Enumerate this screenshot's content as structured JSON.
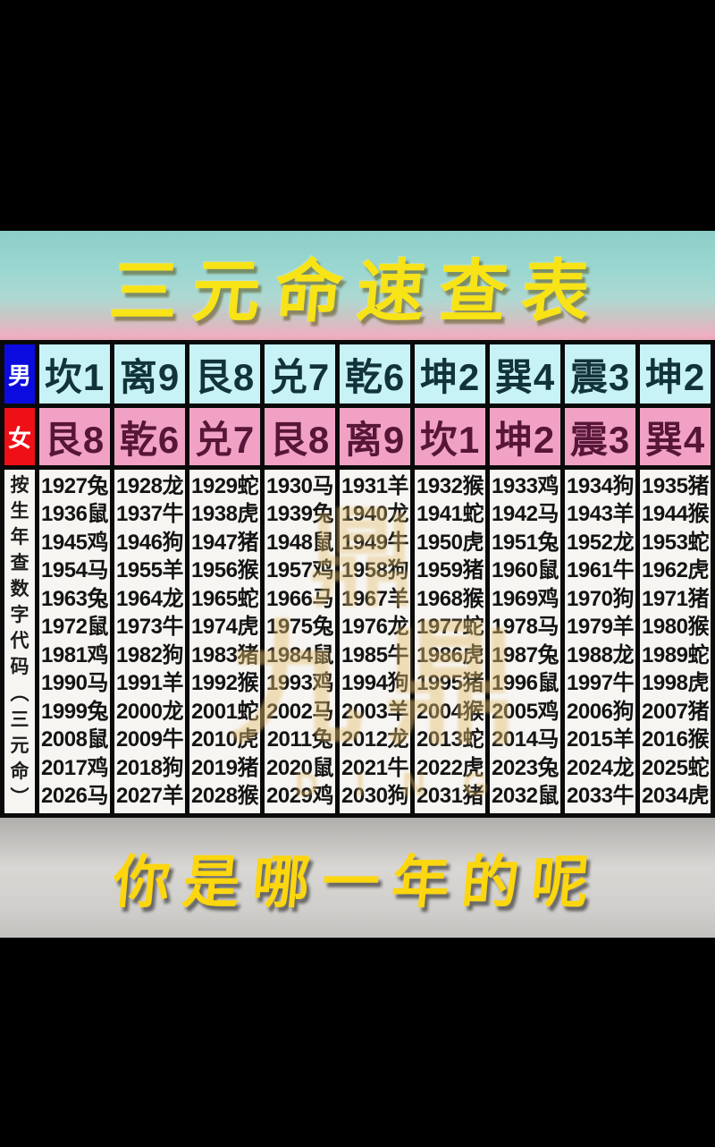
{
  "title": "三元命速查表",
  "footer_caption": "你是哪一年的呢",
  "table": {
    "male_label": "男",
    "female_label": "女",
    "male_row": [
      "坎1",
      "离9",
      "艮8",
      "兑7",
      "乾6",
      "坤2",
      "巽4",
      "震3",
      "坤2"
    ],
    "female_row": [
      "艮8",
      "乾6",
      "兑7",
      "艮8",
      "离9",
      "坎1",
      "坤2",
      "震3",
      "巽4"
    ],
    "side_label": "按生年查数字代码(三元命)",
    "side_label_chars": [
      "按",
      "生",
      "年",
      "查",
      "数",
      "字",
      "代",
      "码",
      "︵",
      "三",
      "元",
      "命",
      "︶"
    ],
    "year_columns": [
      [
        "1927兔",
        "1936鼠",
        "1945鸡",
        "1954马",
        "1963兔",
        "1972鼠",
        "1981鸡",
        "1990马",
        "1999兔",
        "2008鼠",
        "2017鸡",
        "2026马"
      ],
      [
        "1928龙",
        "1937牛",
        "1946狗",
        "1955羊",
        "1964龙",
        "1973牛",
        "1982狗",
        "1991羊",
        "2000龙",
        "2009牛",
        "2018狗",
        "2027羊"
      ],
      [
        "1929蛇",
        "1938虎",
        "1947猪",
        "1956猴",
        "1965蛇",
        "1974虎",
        "1983猪",
        "1992猴",
        "2001蛇",
        "2010虎",
        "2019猪",
        "2028猴"
      ],
      [
        "1930马",
        "1939兔",
        "1948鼠",
        "1957鸡",
        "1966马",
        "1975兔",
        "1984鼠",
        "1993鸡",
        "2002马",
        "2011兔",
        "2020鼠",
        "2029鸡"
      ],
      [
        "1931羊",
        "1940龙",
        "1949牛",
        "1958狗",
        "1967羊",
        "1976龙",
        "1985牛",
        "1994狗",
        "2003羊",
        "2012龙",
        "2021牛",
        "2030狗"
      ],
      [
        "1932猴",
        "1941蛇",
        "1950虎",
        "1959猪",
        "1968猴",
        "1977蛇",
        "1986虎",
        "1995猪",
        "2004猴",
        "2013蛇",
        "2022虎",
        "2031猪"
      ],
      [
        "1933鸡",
        "1942马",
        "1951兔",
        "1960鼠",
        "1969鸡",
        "1978马",
        "1987兔",
        "1996鼠",
        "2005鸡",
        "2014马",
        "2023兔",
        "2032鼠"
      ],
      [
        "1934狗",
        "1943羊",
        "1952龙",
        "1961牛",
        "1970狗",
        "1979羊",
        "1988龙",
        "1997牛",
        "2006狗",
        "2015羊",
        "2024龙",
        "2033牛"
      ],
      [
        "1935猪",
        "1944猴",
        "1953蛇",
        "1962虎",
        "1971猪",
        "1980猴",
        "1989蛇",
        "1998虎",
        "2007猪",
        "2016猴",
        "2025蛇",
        "2034虎"
      ]
    ]
  },
  "watermark": {
    "seal": "鼎",
    "main": "九鼎",
    "latin": "DING"
  },
  "colors": {
    "male_header_bg": "#0b0bdf",
    "female_header_bg": "#ef0f16",
    "male_row_bg": "#c7f3f6",
    "female_row_bg": "#f1a2c4",
    "title_text": "#f8e316",
    "footer_text": "#fcd60e",
    "watermark": "#e4c070",
    "title_band_top": "#8ccfc8",
    "title_band_bottom": "#e9a8bc",
    "footer_band": "#d9d7d4"
  }
}
